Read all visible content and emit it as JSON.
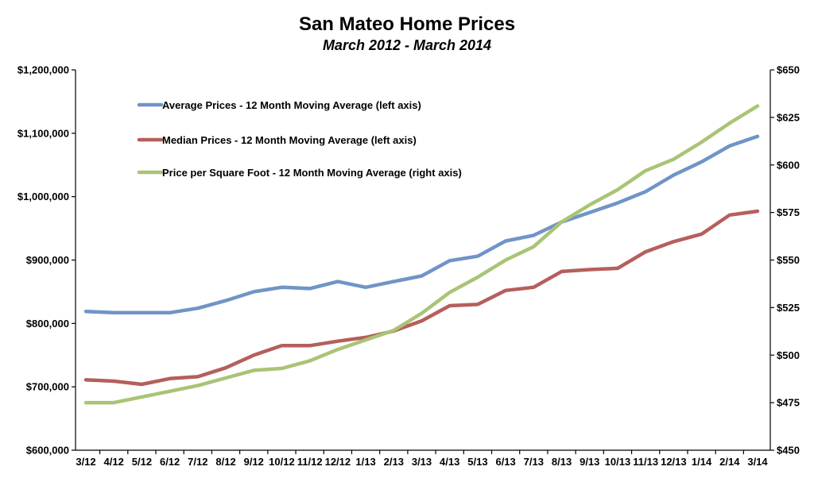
{
  "chart_data": {
    "type": "line",
    "title": "San Mateo Home Prices",
    "subtitle": "March 2012 - March 2014",
    "categories": [
      "3/12",
      "4/12",
      "5/12",
      "6/12",
      "7/12",
      "8/12",
      "9/12",
      "10/12",
      "11/12",
      "12/12",
      "1/13",
      "2/13",
      "3/13",
      "4/13",
      "5/13",
      "6/13",
      "7/13",
      "8/13",
      "9/13",
      "10/13",
      "11/13",
      "12/13",
      "1/14",
      "2/14",
      "3/14"
    ],
    "left_axis": {
      "min": 600000,
      "max": 1200000,
      "ticks": [
        {
          "value": 600000,
          "label": "$600,000"
        },
        {
          "value": 700000,
          "label": "$700,000"
        },
        {
          "value": 800000,
          "label": "$800,000"
        },
        {
          "value": 900000,
          "label": "$900,000"
        },
        {
          "value": 1000000,
          "label": "$1,000,000"
        },
        {
          "value": 1100000,
          "label": "$1,100,000"
        },
        {
          "value": 1200000,
          "label": "$1,200,000"
        }
      ]
    },
    "right_axis": {
      "min": 450,
      "max": 650,
      "ticks": [
        {
          "value": 450,
          "label": "$450"
        },
        {
          "value": 475,
          "label": "$475"
        },
        {
          "value": 500,
          "label": "$500"
        },
        {
          "value": 525,
          "label": "$525"
        },
        {
          "value": 550,
          "label": "$550"
        },
        {
          "value": 575,
          "label": "$575"
        },
        {
          "value": 600,
          "label": "$600"
        },
        {
          "value": 625,
          "label": "$625"
        },
        {
          "value": 650,
          "label": "$650"
        }
      ]
    },
    "grid": false,
    "legend_position": "top-left",
    "series": [
      {
        "name": "Average Prices - 12 Month Moving Average (left axis)",
        "axis": "left",
        "color": "#7094c6",
        "values": [
          819000,
          817000,
          817000,
          817000,
          824000,
          836000,
          850000,
          857000,
          855000,
          866000,
          857000,
          866000,
          875000,
          899000,
          906000,
          930000,
          939000,
          960000,
          975000,
          990000,
          1008000,
          1034000,
          1055000,
          1080000,
          1095000
        ]
      },
      {
        "name": "Median Prices - 12 Month Moving Average (left axis)",
        "axis": "left",
        "color": "#b55f5c",
        "values": [
          711000,
          709000,
          704000,
          713000,
          716000,
          730000,
          750000,
          765000,
          765000,
          772000,
          778000,
          788000,
          804000,
          828000,
          830000,
          852000,
          857000,
          882000,
          885000,
          887000,
          913000,
          929000,
          941000,
          971000,
          977000
        ]
      },
      {
        "name": "Price per Square Foot - 12 Month Moving Average (right axis)",
        "axis": "right",
        "color": "#a9c475",
        "values": [
          475,
          475,
          478,
          481,
          484,
          488,
          492,
          493,
          497,
          503,
          508,
          513,
          522,
          533,
          541,
          550,
          557,
          570,
          579,
          587,
          597,
          603,
          612,
          622,
          631
        ]
      }
    ]
  }
}
